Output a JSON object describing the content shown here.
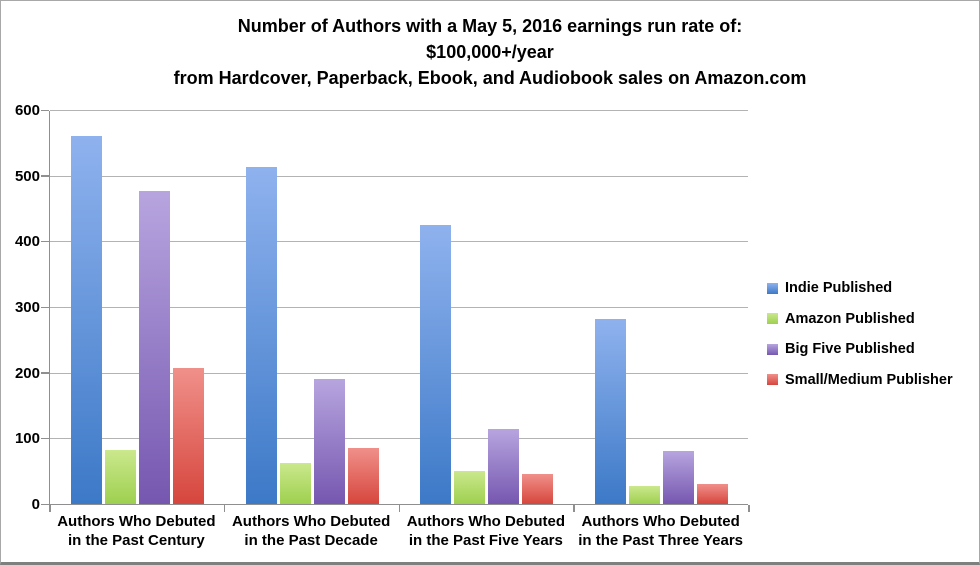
{
  "chart_data": {
    "type": "bar",
    "title_lines": [
      "Number of Authors with a May 5, 2016 earnings run rate of:",
      "$100,000+/year",
      "from Hardcover, Paperback, Ebook, and Audiobook sales on Amazon.com"
    ],
    "categories": [
      [
        "Authors Who Debuted",
        "in the Past Century"
      ],
      [
        "Authors Who Debuted",
        "in the Past Decade"
      ],
      [
        "Authors Who Debuted",
        "in the Past Five Years"
      ],
      [
        "Authors Who Debuted",
        "in the Past Three Years"
      ]
    ],
    "series": [
      {
        "name": "Indie Published",
        "values": [
          560,
          513,
          425,
          281
        ],
        "color_top": "#8FB2EE",
        "color_bottom": "#3C79C7"
      },
      {
        "name": "Amazon Published",
        "values": [
          82,
          63,
          50,
          27
        ],
        "color_top": "#CBE88D",
        "color_bottom": "#9ED04F"
      },
      {
        "name": "Big Five Published",
        "values": [
          477,
          190,
          114,
          80
        ],
        "color_top": "#B7A5DF",
        "color_bottom": "#7657B0"
      },
      {
        "name": "Small/Medium Publisher",
        "values": [
          207,
          85,
          45,
          30
        ],
        "color_top": "#F0908A",
        "color_bottom": "#D6463D"
      }
    ],
    "ylim": [
      0,
      600
    ],
    "yticks": [
      0,
      100,
      200,
      300,
      400,
      500,
      600
    ],
    "grid": true,
    "legend_position": "right",
    "colors": {
      "gridline": "#B3B3B3",
      "axis": "#8F8F8F",
      "text": "#000000",
      "background": "#FFFFFF"
    }
  }
}
